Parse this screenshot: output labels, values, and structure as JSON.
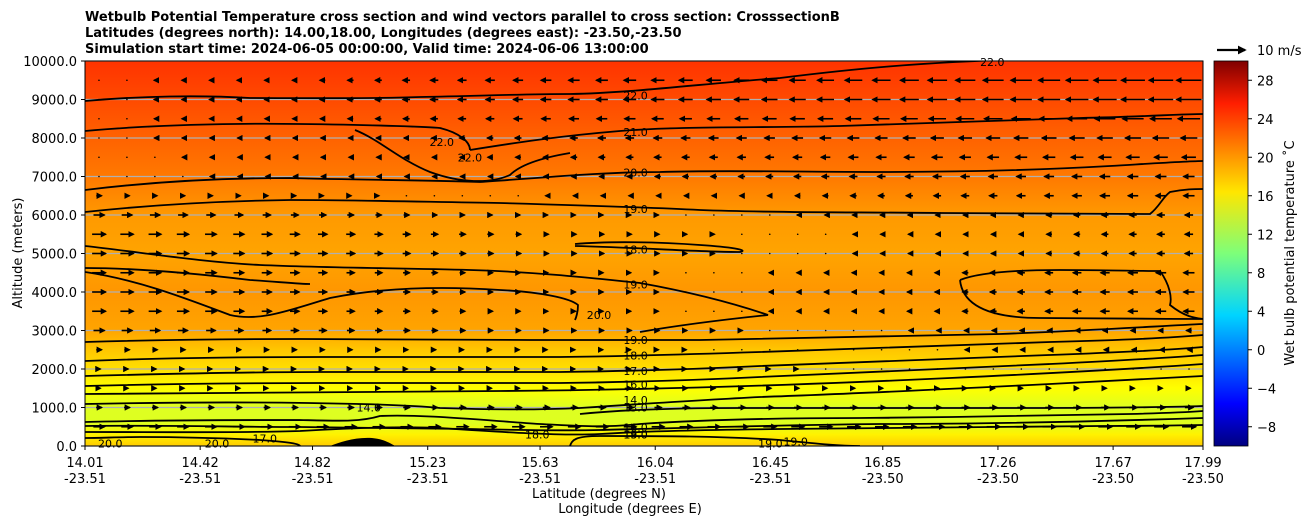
{
  "chart_data": {
    "type": "contour",
    "title_lines": [
      "Wetbulb Potential Temperature cross section and wind vectors parallel to cross section: CrosssectionB",
      "Latitudes (degrees north): 14.00,18.00, Longitudes (degrees east): -23.50,-23.50",
      "Simulation start time: 2024-06-05 00:00:00, Valid time: 2024-06-06 13:00:00"
    ],
    "xlabel": "Latitude (degrees N)",
    "xlabel2": "Longitude (degrees E)",
    "ylabel": "Altitude (meters)",
    "ylim": [
      0,
      10000
    ],
    "yticks": [
      "0.0",
      "1000.0",
      "2000.0",
      "3000.0",
      "4000.0",
      "5000.0",
      "6000.0",
      "7000.0",
      "8000.0",
      "9000.0",
      "10000.0"
    ],
    "ytick_values": [
      0,
      1000,
      2000,
      3000,
      4000,
      5000,
      6000,
      7000,
      8000,
      9000,
      10000
    ],
    "xlim": [
      14.01,
      17.99
    ],
    "xticks_lat": [
      "14.01",
      "14.42",
      "14.82",
      "15.23",
      "15.63",
      "16.04",
      "16.45",
      "16.85",
      "17.26",
      "17.67",
      "17.99"
    ],
    "xticks_lon": [
      "-23.51",
      "-23.51",
      "-23.51",
      "-23.51",
      "-23.51",
      "-23.51",
      "-23.51",
      "-23.50",
      "-23.50",
      "-23.50",
      "-23.50"
    ],
    "xtick_values": [
      14.01,
      14.42,
      14.82,
      15.23,
      15.63,
      16.04,
      16.45,
      16.85,
      17.26,
      17.67,
      17.99
    ],
    "grid": "horizontal",
    "colorbar": {
      "label": "Wet bulb potential temperature ˚C",
      "range": [
        -10,
        30
      ],
      "ticks": [
        "−8",
        "−4",
        "0",
        "4",
        "8",
        "12",
        "16",
        "20",
        "24",
        "28"
      ],
      "tick_values": [
        -8,
        -4,
        0,
        4,
        8,
        12,
        16,
        20,
        24,
        28
      ]
    },
    "quiver_key": {
      "label": "10 m/s",
      "speed": 10
    },
    "wind_profile": {
      "levels": [
        500,
        1000,
        1500,
        2000,
        2500,
        3000,
        3500,
        4000,
        4500,
        5000,
        5500,
        6000,
        6500,
        7000,
        7500,
        8000,
        8500,
        9000,
        9500
      ],
      "west_u": [
        4,
        2,
        1,
        1,
        2,
        4,
        5,
        5,
        5,
        5,
        5,
        4,
        2,
        0,
        0,
        0,
        0,
        0,
        0
      ],
      "east_u": [
        5,
        3,
        1,
        0,
        -1,
        -2,
        -4,
        -4,
        -4,
        -3,
        -3,
        -3,
        -4,
        -4,
        -5,
        -6,
        -8,
        -9,
        -9
      ]
    },
    "temperature_field": {
      "heights": [
        0,
        300,
        600,
        1000,
        1500,
        2000,
        2500,
        3000,
        4000,
        5000,
        6000,
        7000,
        8000,
        9000,
        10000
      ],
      "west": [
        17,
        16,
        14.5,
        14.5,
        16,
        17.5,
        18.5,
        19.5,
        19.8,
        19.3,
        19.4,
        20.5,
        21.3,
        22.2,
        23
      ],
      "east": [
        17,
        15,
        13,
        12.8,
        14,
        15,
        16,
        17.6,
        18.4,
        17.8,
        18.6,
        20,
        21,
        22,
        23
      ]
    },
    "contour_labels": [
      {
        "text": "22.0",
        "lat": 15.97,
        "alt": 9100
      },
      {
        "text": "21.0",
        "lat": 15.97,
        "alt": 8150
      },
      {
        "text": "22.0",
        "lat": 15.28,
        "alt": 7900
      },
      {
        "text": "22.0",
        "lat": 15.38,
        "alt": 7500
      },
      {
        "text": "20.0",
        "lat": 15.97,
        "alt": 7100
      },
      {
        "text": "19.0",
        "lat": 15.97,
        "alt": 6150
      },
      {
        "text": "18.0",
        "lat": 15.97,
        "alt": 5100
      },
      {
        "text": "19.0",
        "lat": 15.97,
        "alt": 4200
      },
      {
        "text": "20.0",
        "lat": 15.84,
        "alt": 3400
      },
      {
        "text": "19.0",
        "lat": 15.97,
        "alt": 2750
      },
      {
        "text": "18.0",
        "lat": 15.97,
        "alt": 2350
      },
      {
        "text": "17.0",
        "lat": 15.97,
        "alt": 1950
      },
      {
        "text": "16.0",
        "lat": 15.97,
        "alt": 1600
      },
      {
        "text": "14.0",
        "lat": 15.02,
        "alt": 1000
      },
      {
        "text": "14.0",
        "lat": 15.97,
        "alt": 1200
      },
      {
        "text": "13.0",
        "lat": 15.97,
        "alt": 1000
      },
      {
        "text": "16.0",
        "lat": 15.97,
        "alt": 480
      },
      {
        "text": "18.0",
        "lat": 15.97,
        "alt": 300
      },
      {
        "text": "19.0",
        "lat": 15.97,
        "alt": 300
      },
      {
        "text": "18.0",
        "lat": 15.62,
        "alt": 300
      },
      {
        "text": "19.0",
        "lat": 16.45,
        "alt": 60
      },
      {
        "text": "19.0",
        "lat": 16.54,
        "alt": 120
      },
      {
        "text": "20.0",
        "lat": 14.1,
        "alt": 60
      },
      {
        "text": "20.0",
        "lat": 14.48,
        "alt": 60
      },
      {
        "text": "17.0",
        "lat": 14.65,
        "alt": 200
      },
      {
        "text": "22.0",
        "lat": 17.24,
        "alt": 9980
      }
    ]
  }
}
